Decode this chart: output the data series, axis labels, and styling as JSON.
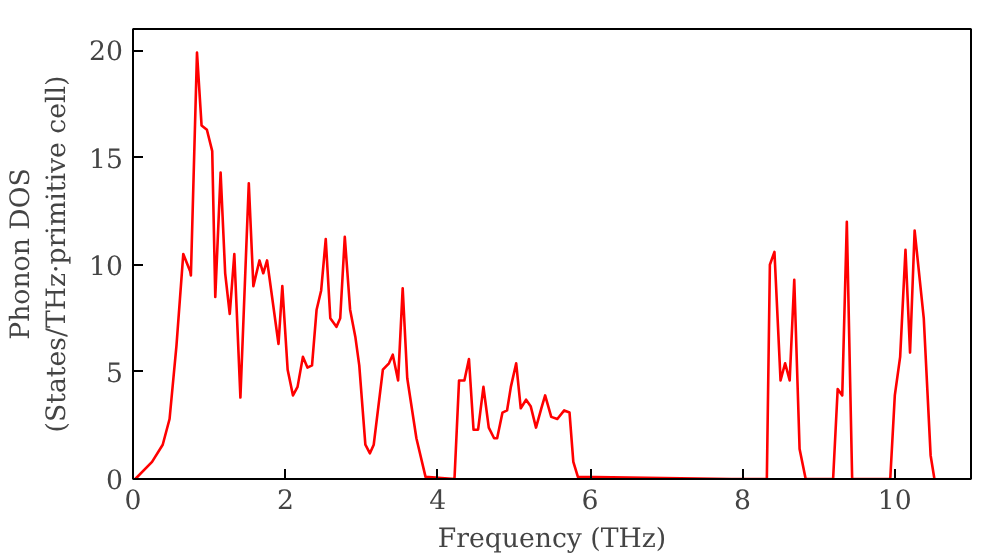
{
  "chart_data": {
    "type": "line",
    "xlabel": "Frequency (THz)",
    "ylabel": "Phonon DOS\n(States/THz·primitive cell)",
    "xlim": [
      0,
      11
    ],
    "ylim": [
      0,
      21
    ],
    "xticks": [
      0,
      2,
      4,
      6,
      8,
      10
    ],
    "yticks": [
      0,
      5,
      10,
      15,
      20
    ],
    "grid": false,
    "series": [
      {
        "color": "#ff0000",
        "x": [
          0.03,
          0.25,
          0.39,
          0.48,
          0.57,
          0.66,
          0.75,
          0.76,
          0.84,
          0.9,
          0.97,
          1.04,
          1.08,
          1.15,
          1.21,
          1.27,
          1.33,
          1.41,
          1.52,
          1.58,
          1.66,
          1.71,
          1.76,
          1.91,
          1.96,
          2.03,
          2.1,
          2.16,
          2.23,
          2.29,
          2.35,
          2.41,
          2.47,
          2.53,
          2.59,
          2.67,
          2.72,
          2.78,
          2.85,
          2.92,
          2.97,
          3.05,
          3.11,
          3.16,
          3.28,
          3.36,
          3.41,
          3.48,
          3.54,
          3.6,
          3.72,
          3.84,
          4.22,
          4.28,
          4.35,
          4.41,
          4.47,
          4.53,
          4.6,
          4.67,
          4.74,
          4.78,
          4.85,
          4.91,
          4.96,
          5.03,
          5.09,
          5.16,
          5.22,
          5.29,
          5.36,
          5.41,
          5.49,
          5.57,
          5.66,
          5.73,
          5.78,
          5.84,
          7.86,
          8.32,
          8.36,
          8.42,
          8.5,
          8.56,
          8.62,
          8.68,
          8.75,
          8.83,
          9.19,
          9.25,
          9.31,
          9.37,
          9.44,
          9.94,
          10.0,
          10.07,
          10.14,
          10.2,
          10.26,
          10.38,
          10.47,
          10.52
        ],
        "values": [
          0,
          0.8,
          1.6,
          2.8,
          6.2,
          10.5,
          9.7,
          9.5,
          19.9,
          16.5,
          16.3,
          15.3,
          8.5,
          14.3,
          9.6,
          7.7,
          10.5,
          3.8,
          13.8,
          9.0,
          10.2,
          9.6,
          10.2,
          6.3,
          9.0,
          5.1,
          3.9,
          4.3,
          5.7,
          5.2,
          5.3,
          7.9,
          8.8,
          11.2,
          7.5,
          7.1,
          7.5,
          11.3,
          7.9,
          6.6,
          5.3,
          1.6,
          1.2,
          1.6,
          5.1,
          5.4,
          5.8,
          4.6,
          8.9,
          4.7,
          1.9,
          0.1,
          0,
          4.6,
          4.6,
          5.6,
          2.3,
          2.3,
          4.3,
          2.4,
          1.9,
          1.9,
          3.1,
          3.2,
          4.3,
          5.4,
          3.3,
          3.7,
          3.4,
          2.4,
          3.3,
          3.9,
          2.9,
          2.8,
          3.2,
          3.1,
          0.8,
          0.1,
          0,
          0,
          10.0,
          10.6,
          4.6,
          5.4,
          4.6,
          9.3,
          1.4,
          0,
          0,
          4.2,
          3.9,
          12.0,
          0,
          0,
          3.9,
          5.7,
          10.7,
          5.9,
          11.6,
          7.5,
          1.1,
          0
        ]
      }
    ]
  }
}
